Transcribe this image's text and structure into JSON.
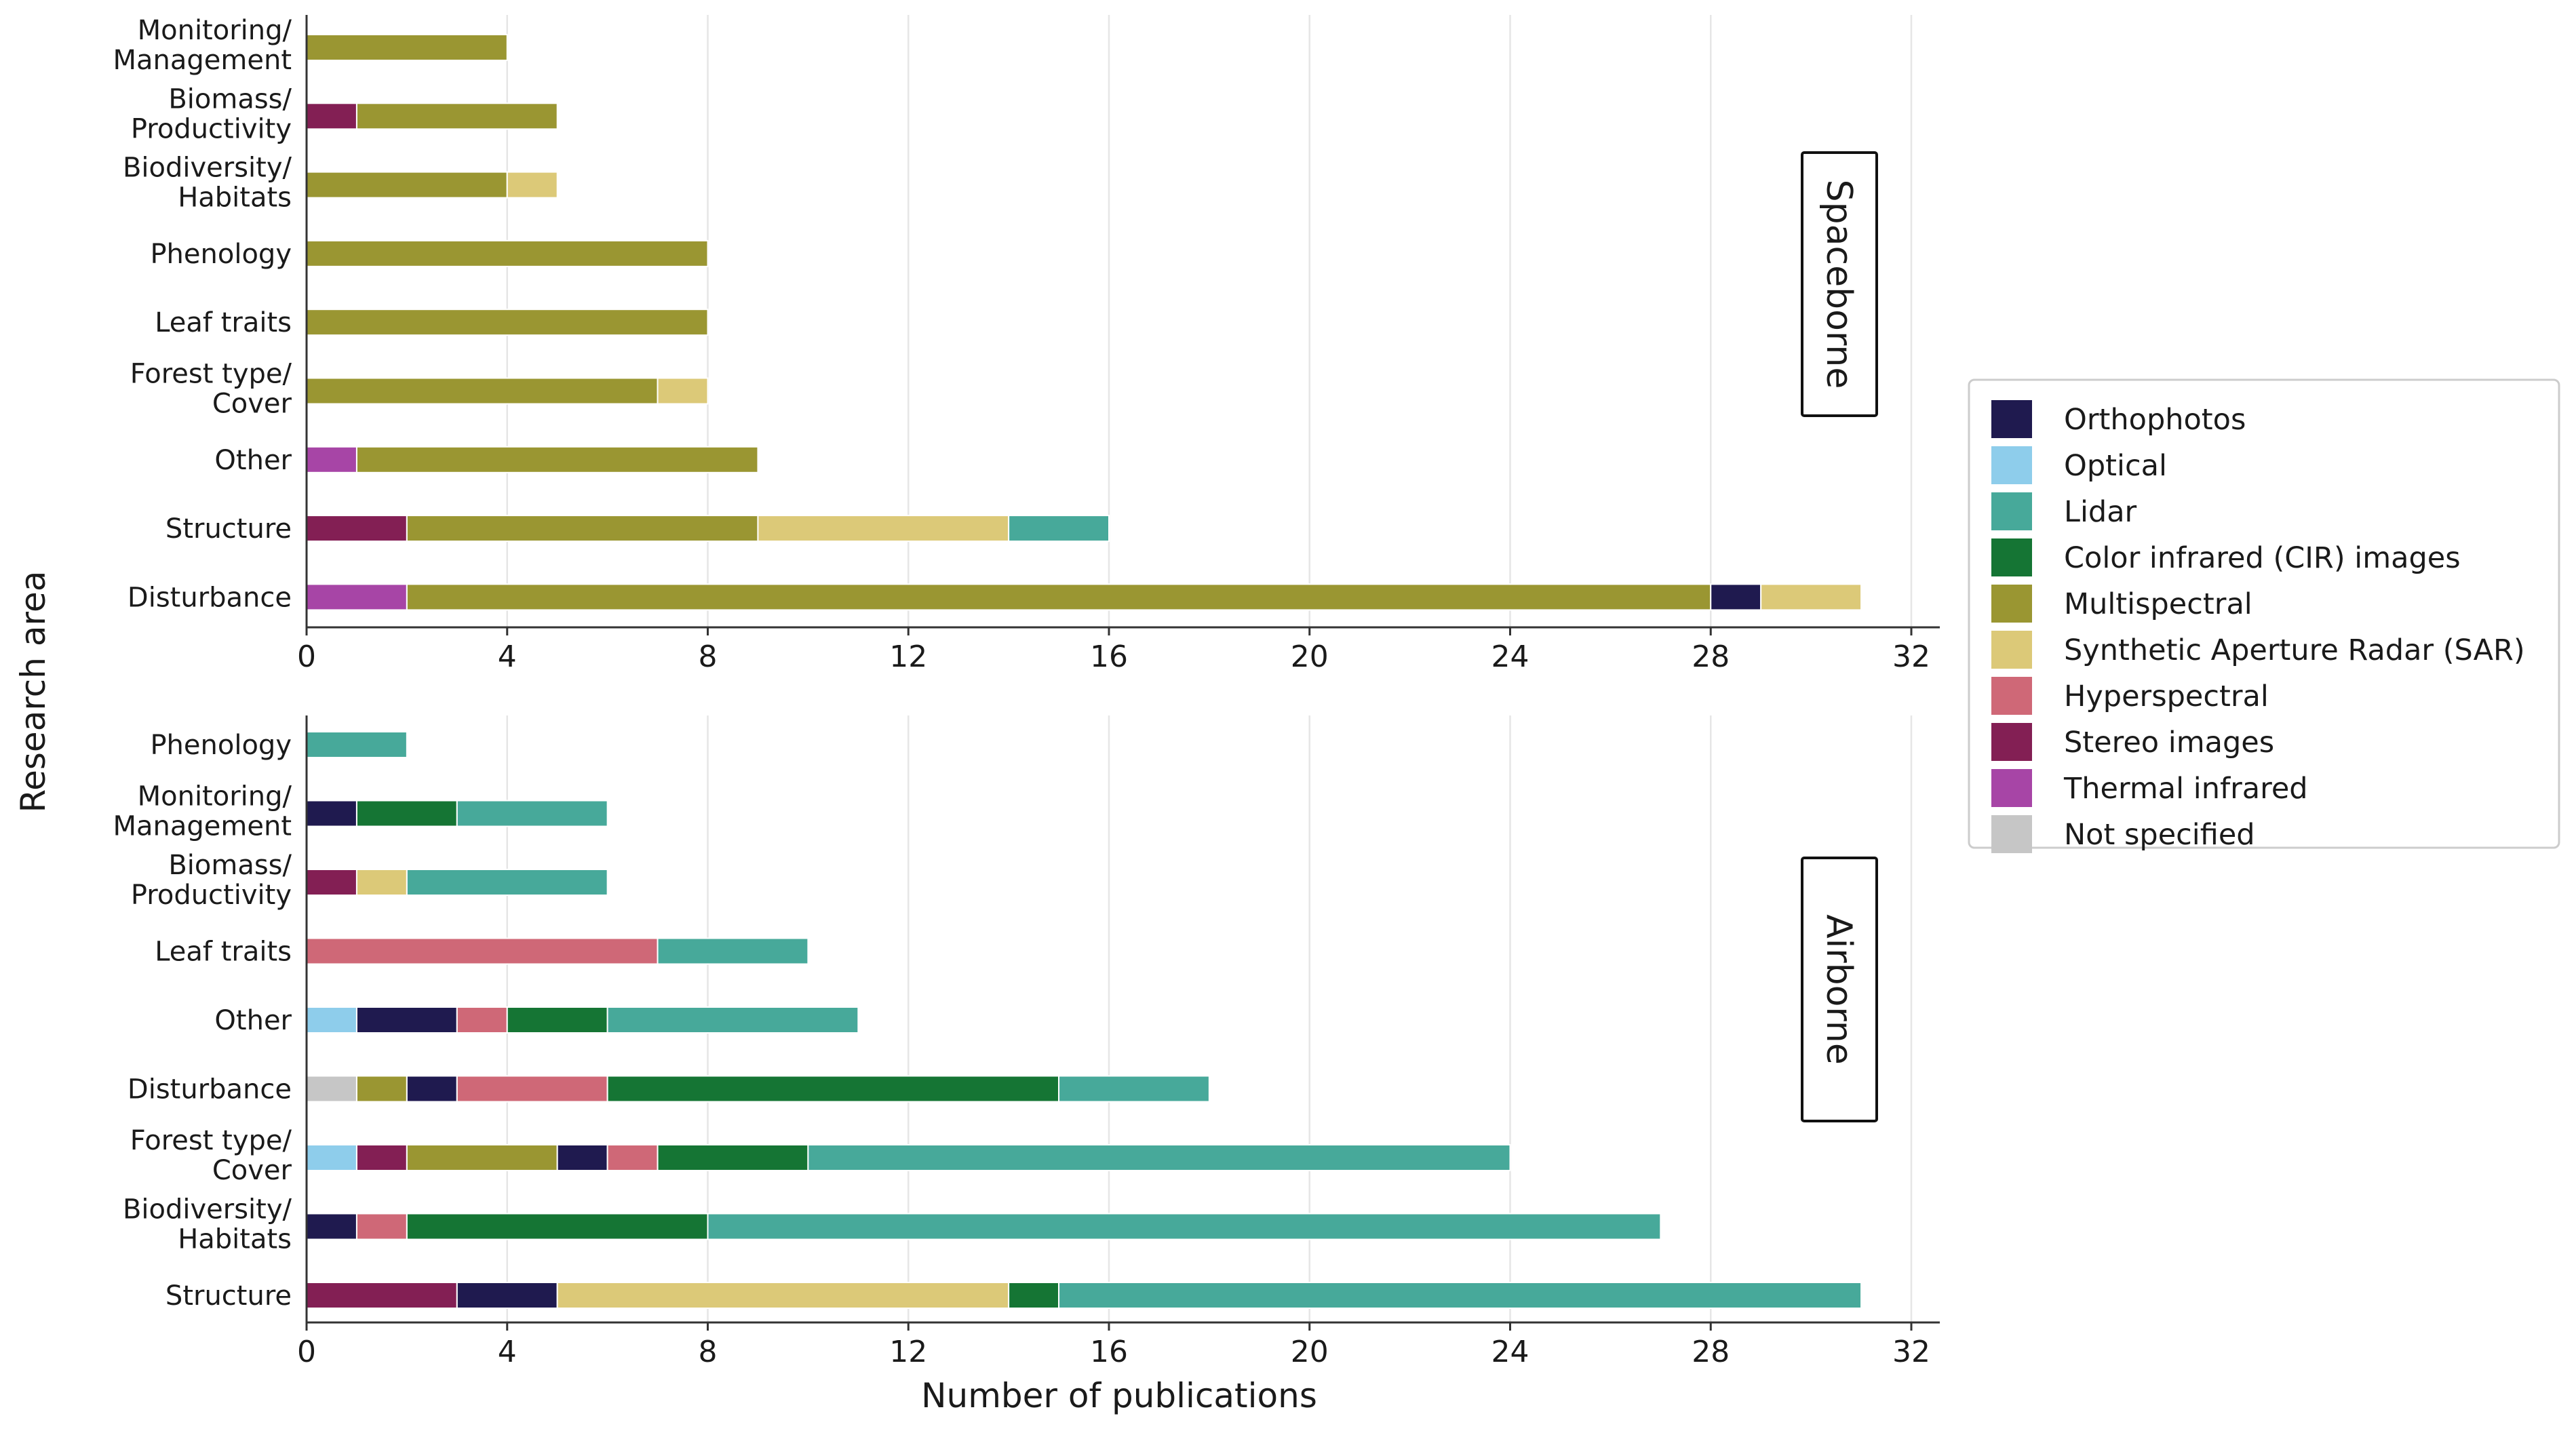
{
  "chart_data": {
    "type": "bar",
    "orientation": "horizontal",
    "stacked": true,
    "xlabel": "Number of publications",
    "ylabel": "Research area",
    "xlim": [
      0,
      32
    ],
    "xticks": [
      0,
      4,
      8,
      12,
      16,
      20,
      24,
      28,
      32
    ],
    "grid": "vertical",
    "legend_position": "right",
    "legend": [
      {
        "key": "orthophotos",
        "name": "Orthophotos",
        "color": "#1f1a4f"
      },
      {
        "key": "optical",
        "name": "Optical",
        "color": "#8ecdeb"
      },
      {
        "key": "lidar",
        "name": "Lidar",
        "color": "#47a99a"
      },
      {
        "key": "cir",
        "name": "Color infrared (CIR) images",
        "color": "#157534"
      },
      {
        "key": "multispectral",
        "name": "Multispectral",
        "color": "#9a9632"
      },
      {
        "key": "sar",
        "name": "Synthetic Aperture Radar (SAR)",
        "color": "#dcc978"
      },
      {
        "key": "hyperspectral",
        "name": "Hyperspectral",
        "color": "#cf6877"
      },
      {
        "key": "stereo",
        "name": "Stereo images",
        "color": "#831f54"
      },
      {
        "key": "thermal",
        "name": "Thermal infrared",
        "color": "#a745a6"
      },
      {
        "key": "notspecified",
        "name": "Not specified",
        "color": "#c6c6c6"
      }
    ],
    "panels": [
      {
        "name": "Spaceborne",
        "categories": [
          {
            "label": [
              "Monitoring/",
              "Management"
            ],
            "segments": [
              [
                "multispectral",
                4
              ]
            ]
          },
          {
            "label": [
              "Biomass/",
              "Productivity"
            ],
            "segments": [
              [
                "stereo",
                1
              ],
              [
                "multispectral",
                4
              ]
            ]
          },
          {
            "label": [
              "Biodiversity/",
              "Habitats"
            ],
            "segments": [
              [
                "multispectral",
                4
              ],
              [
                "sar",
                1
              ]
            ]
          },
          {
            "label": [
              "Phenology"
            ],
            "segments": [
              [
                "multispectral",
                8
              ]
            ]
          },
          {
            "label": [
              "Leaf traits"
            ],
            "segments": [
              [
                "multispectral",
                8
              ]
            ]
          },
          {
            "label": [
              "Forest type/",
              "Cover"
            ],
            "segments": [
              [
                "multispectral",
                7
              ],
              [
                "sar",
                1
              ]
            ]
          },
          {
            "label": [
              "Other"
            ],
            "segments": [
              [
                "thermal",
                1
              ],
              [
                "multispectral",
                8
              ]
            ]
          },
          {
            "label": [
              "Structure"
            ],
            "segments": [
              [
                "stereo",
                2
              ],
              [
                "multispectral",
                7
              ],
              [
                "sar",
                5
              ],
              [
                "lidar",
                2
              ]
            ]
          },
          {
            "label": [
              "Disturbance"
            ],
            "segments": [
              [
                "thermal",
                2
              ],
              [
                "multispectral",
                26
              ],
              [
                "orthophotos",
                1
              ],
              [
                "sar",
                2
              ]
            ]
          }
        ]
      },
      {
        "name": "Airborne",
        "categories": [
          {
            "label": [
              "Phenology"
            ],
            "segments": [
              [
                "lidar",
                2
              ]
            ]
          },
          {
            "label": [
              "Monitoring/",
              "Management"
            ],
            "segments": [
              [
                "orthophotos",
                1
              ],
              [
                "cir",
                2
              ],
              [
                "lidar",
                3
              ]
            ]
          },
          {
            "label": [
              "Biomass/",
              "Productivity"
            ],
            "segments": [
              [
                "stereo",
                1
              ],
              [
                "sar",
                1
              ],
              [
                "lidar",
                4
              ]
            ]
          },
          {
            "label": [
              "Leaf traits"
            ],
            "segments": [
              [
                "hyperspectral",
                7
              ],
              [
                "lidar",
                3
              ]
            ]
          },
          {
            "label": [
              "Other"
            ],
            "segments": [
              [
                "optical",
                1
              ],
              [
                "orthophotos",
                2
              ],
              [
                "hyperspectral",
                1
              ],
              [
                "cir",
                2
              ],
              [
                "lidar",
                5
              ]
            ]
          },
          {
            "label": [
              "Disturbance"
            ],
            "segments": [
              [
                "notspecified",
                1
              ],
              [
                "multispectral",
                1
              ],
              [
                "orthophotos",
                1
              ],
              [
                "hyperspectral",
                3
              ],
              [
                "cir",
                9
              ],
              [
                "lidar",
                3
              ]
            ]
          },
          {
            "label": [
              "Forest type/",
              "Cover"
            ],
            "segments": [
              [
                "optical",
                1
              ],
              [
                "stereo",
                1
              ],
              [
                "multispectral",
                3
              ],
              [
                "orthophotos",
                1
              ],
              [
                "hyperspectral",
                1
              ],
              [
                "cir",
                3
              ],
              [
                "lidar",
                14
              ]
            ]
          },
          {
            "label": [
              "Biodiversity/",
              "Habitats"
            ],
            "segments": [
              [
                "orthophotos",
                1
              ],
              [
                "hyperspectral",
                1
              ],
              [
                "cir",
                6
              ],
              [
                "lidar",
                19
              ]
            ]
          },
          {
            "label": [
              "Structure"
            ],
            "segments": [
              [
                "stereo",
                3
              ],
              [
                "orthophotos",
                2
              ],
              [
                "sar",
                9
              ],
              [
                "cir",
                1
              ],
              [
                "lidar",
                16
              ]
            ]
          }
        ]
      }
    ]
  }
}
